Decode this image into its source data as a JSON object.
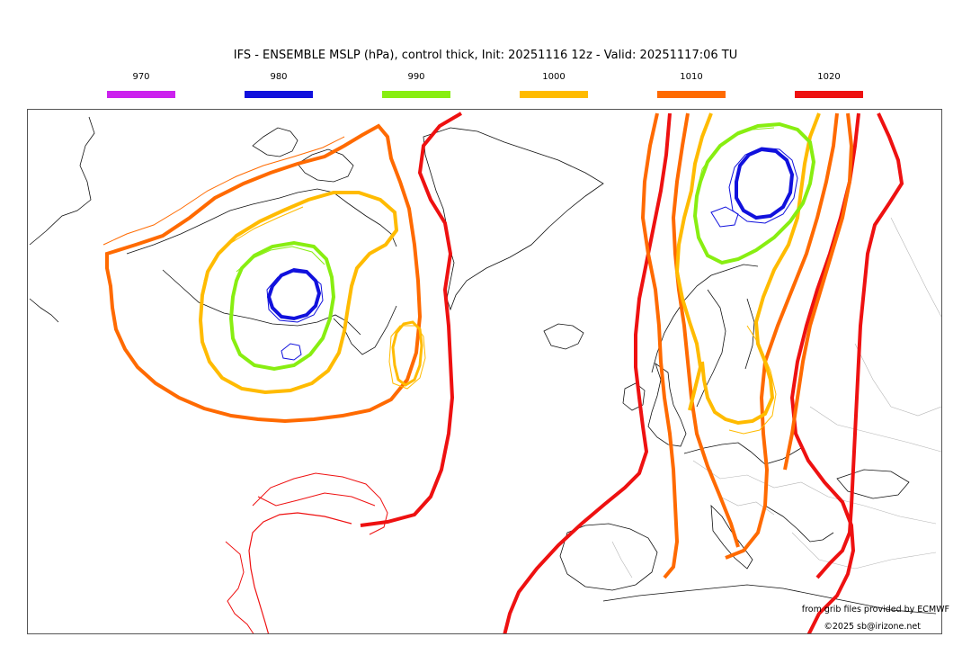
{
  "title": "IFS - ENSEMBLE MSLP (hPa), control thick, Init: 20251116 12z - Valid: 20251117:06 TU",
  "legend": [
    {
      "label": "970",
      "color": "#cc22ee"
    },
    {
      "label": "980",
      "color": "#1111dd"
    },
    {
      "label": "990",
      "color": "#88ee11"
    },
    {
      "label": "1000",
      "color": "#ffbb00"
    },
    {
      "label": "1010",
      "color": "#ff6a00"
    },
    {
      "label": "1020",
      "color": "#ee1111"
    }
  ],
  "credits": {
    "source": "from grib files provided by ECMWF",
    "copyright": "©2025 sb@irizone.net"
  }
}
